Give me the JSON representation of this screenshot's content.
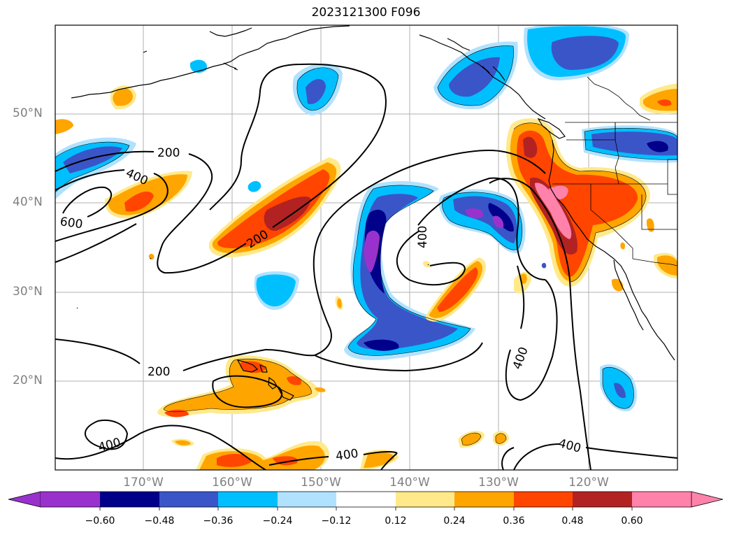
{
  "title": "2023121300 F096",
  "colors": {
    "neg_060": "#9932CC",
    "neg_048": "#00008B",
    "neg_036": "#3A55C8",
    "neg_024": "#00BFFF",
    "neg_012": "#B0E2FF",
    "pos_012": "#FFE98A",
    "pos_024": "#FFA500",
    "pos_036": "#FF4500",
    "pos_048": "#B22222",
    "pos_060": "#FF82AB",
    "contour": "#000000",
    "gridline": "#b0b0b0",
    "graticule_label": "#808080"
  },
  "map": {
    "lat_labels": [
      "50°N",
      "40°N",
      "30°N",
      "20°N"
    ],
    "lon_labels": [
      "170°W",
      "160°W",
      "150°W",
      "140°W",
      "130°W",
      "120°W"
    ],
    "contour_labels": [
      "200",
      "400",
      "600",
      "200",
      "400",
      "400",
      "200",
      "400",
      "400",
      "400"
    ]
  },
  "colorbar": {
    "ticks": [
      "−0.60",
      "−0.48",
      "−0.36",
      "−0.24",
      "−0.12",
      "0.12",
      "0.24",
      "0.36",
      "0.48",
      "0.60"
    ]
  }
}
